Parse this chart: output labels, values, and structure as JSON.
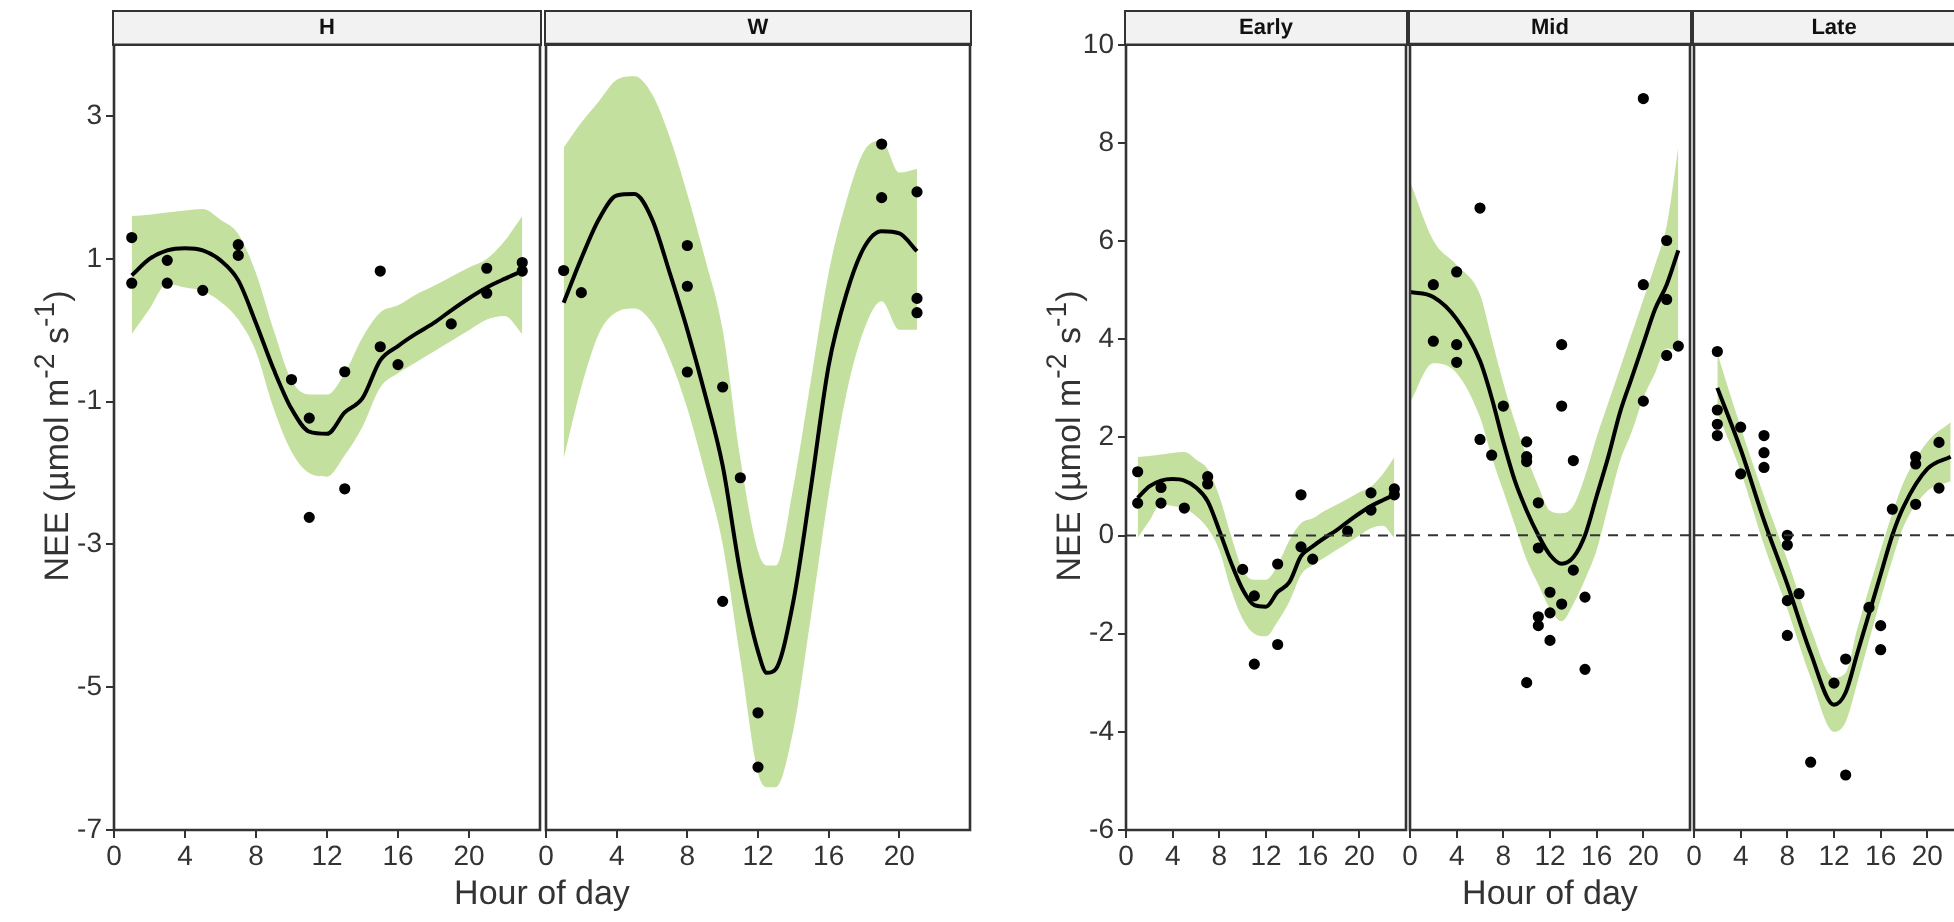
{
  "chart_data": [
    {
      "type": "scatter",
      "title": "H",
      "xlabel": "Hour of day",
      "ylabel": "NEE (µmol m$^{-2}$ s$^{-1}$)",
      "xlim": [
        0,
        24
      ],
      "xticks": [
        0,
        4,
        8,
        12,
        16,
        20
      ],
      "ylim": [
        -7,
        4
      ],
      "yticks": [
        -7,
        -5,
        -3,
        -1,
        1,
        3
      ],
      "marker": "circle",
      "series": [
        {
          "type": "line",
          "marker": "none",
          "color": "#000000",
          "x": [
            1,
            2,
            3,
            4,
            5,
            6,
            7,
            8,
            9,
            10,
            11,
            12,
            13,
            14,
            15,
            16,
            17,
            18,
            19,
            20,
            21,
            22,
            23
          ],
          "values": [
            0.77,
            1.0,
            1.12,
            1.15,
            1.12,
            0.98,
            0.7,
            0.1,
            -0.55,
            -1.1,
            -1.42,
            -1.45,
            -1.15,
            -0.95,
            -0.42,
            -0.22,
            -0.05,
            0.1,
            0.28,
            0.45,
            0.6,
            0.72,
            0.83
          ],
          "lower": [
            -0.05,
            0.3,
            0.65,
            0.6,
            0.55,
            0.4,
            0.15,
            -0.3,
            -1.1,
            -1.7,
            -2.0,
            -2.05,
            -1.75,
            -1.35,
            -0.8,
            -0.6,
            -0.45,
            -0.3,
            -0.15,
            0.0,
            0.15,
            0.2,
            -0.05
          ],
          "upper": [
            1.6,
            1.62,
            1.65,
            1.68,
            1.7,
            1.55,
            1.35,
            0.8,
            0.0,
            -0.7,
            -0.9,
            -0.9,
            -0.6,
            -0.1,
            0.25,
            0.35,
            0.5,
            0.62,
            0.75,
            0.88,
            1.0,
            1.25,
            1.6
          ]
        },
        {
          "color": "#000000",
          "x": [
            1,
            1,
            3,
            3,
            5,
            7,
            7,
            10,
            11,
            11,
            13,
            13,
            15,
            15,
            16,
            19,
            21,
            21,
            23,
            23
          ],
          "values": [
            1.3,
            0.66,
            0.98,
            0.66,
            0.56,
            1.2,
            1.05,
            -0.69,
            -1.23,
            -2.62,
            -0.58,
            -2.22,
            0.83,
            -0.23,
            -0.48,
            0.09,
            0.87,
            0.52,
            0.95,
            0.83
          ]
        }
      ]
    },
    {
      "type": "scatter",
      "title": "W",
      "xlim": [
        0,
        24
      ],
      "xticks": [
        0,
        4,
        8,
        12,
        16,
        20
      ],
      "ylim": [
        -7,
        4
      ],
      "yticks": [
        -7,
        -5,
        -3,
        -1,
        1,
        3
      ],
      "tick_labels": "x",
      "marker": "circle",
      "series": [
        {
          "type": "line",
          "marker": "none",
          "color": "#000000",
          "x": [
            1,
            2,
            3,
            4,
            5,
            6,
            7,
            8,
            9,
            10,
            11,
            12,
            12.5,
            13,
            14,
            15,
            16,
            17,
            18,
            19,
            20,
            21
          ],
          "values": [
            0.38,
            1.0,
            1.55,
            1.88,
            1.9,
            1.55,
            0.8,
            0.0,
            -0.9,
            -1.9,
            -3.4,
            -4.5,
            -4.8,
            -4.75,
            -3.8,
            -2.2,
            -0.5,
            0.5,
            1.15,
            1.38,
            1.35,
            1.1
          ],
          "lower": [
            -1.8,
            -0.8,
            -0.05,
            0.25,
            0.3,
            0.1,
            -0.4,
            -1.1,
            -2.0,
            -3.0,
            -4.6,
            -6.2,
            -6.4,
            -6.4,
            -5.6,
            -4.0,
            -2.3,
            -0.9,
            0.0,
            0.4,
            0.0,
            0.0
          ],
          "upper": [
            2.55,
            2.9,
            3.2,
            3.5,
            3.55,
            3.3,
            2.7,
            1.9,
            1.0,
            0.0,
            -1.8,
            -3.1,
            -3.3,
            -3.3,
            -2.2,
            -0.7,
            0.8,
            1.8,
            2.5,
            2.65,
            2.2,
            2.25
          ]
        },
        {
          "color": "#000000",
          "x": [
            1,
            2,
            8,
            8,
            8,
            10,
            11,
            10,
            12,
            12,
            19,
            19,
            21,
            21,
            21
          ],
          "values": [
            0.83,
            0.52,
            1.18,
            0.61,
            -0.59,
            -0.8,
            -2.07,
            -3.8,
            -5.36,
            -6.12,
            2.6,
            1.85,
            1.93,
            0.44,
            0.24
          ]
        }
      ]
    },
    {
      "type": "scatter",
      "title": "Early",
      "ylabel": "NEE (µmol m$^{-2}$ s$^{-1}$)",
      "xlim": [
        0,
        24
      ],
      "xticks": [
        0,
        4,
        8,
        12,
        16,
        20
      ],
      "ylim": [
        -6,
        10
      ],
      "yticks": [
        -6,
        -4,
        -2,
        0,
        2,
        4,
        6,
        8,
        10
      ],
      "marker": "circle",
      "ref_lines": [
        {
          "axis": "y",
          "value": 0,
          "line_style": "dashed"
        }
      ],
      "series": [
        {
          "type": "line",
          "marker": "none",
          "color": "#000000",
          "x": [
            1,
            2,
            3,
            4,
            5,
            6,
            7,
            8,
            9,
            10,
            11,
            12,
            13,
            14,
            15,
            16,
            17,
            18,
            19,
            20,
            21,
            22,
            23
          ],
          "values": [
            0.77,
            1.0,
            1.12,
            1.15,
            1.12,
            0.98,
            0.7,
            0.1,
            -0.55,
            -1.1,
            -1.42,
            -1.45,
            -1.15,
            -0.95,
            -0.42,
            -0.22,
            -0.05,
            0.1,
            0.28,
            0.45,
            0.6,
            0.72,
            0.83
          ],
          "lower": [
            -0.05,
            0.3,
            0.65,
            0.6,
            0.55,
            0.4,
            0.15,
            -0.3,
            -1.1,
            -1.7,
            -2.0,
            -2.05,
            -1.75,
            -1.35,
            -0.8,
            -0.6,
            -0.45,
            -0.3,
            -0.15,
            0.0,
            0.15,
            0.2,
            -0.05
          ],
          "upper": [
            1.6,
            1.62,
            1.65,
            1.68,
            1.7,
            1.55,
            1.35,
            0.8,
            0.0,
            -0.7,
            -0.9,
            -0.9,
            -0.6,
            -0.1,
            0.25,
            0.35,
            0.5,
            0.62,
            0.75,
            0.88,
            1.0,
            1.25,
            1.6
          ]
        },
        {
          "color": "#000000",
          "x": [
            1,
            1,
            3,
            3,
            5,
            7,
            7,
            10,
            11,
            11,
            13,
            13,
            15,
            15,
            16,
            19,
            21,
            21,
            23,
            23
          ],
          "values": [
            1.3,
            0.66,
            0.98,
            0.66,
            0.56,
            1.2,
            1.05,
            -0.69,
            -1.23,
            -2.62,
            -0.58,
            -2.22,
            0.83,
            -0.23,
            -0.48,
            0.09,
            0.87,
            0.52,
            0.95,
            0.83
          ]
        }
      ]
    },
    {
      "type": "scatter",
      "title": "Mid",
      "xlabel": "Hour of day",
      "xlim": [
        0,
        24
      ],
      "xticks": [
        0,
        4,
        8,
        12,
        16,
        20
      ],
      "ylim": [
        -6,
        10
      ],
      "yticks": [
        -6,
        -4,
        -2,
        0,
        2,
        4,
        6,
        8,
        10
      ],
      "tick_labels": "x",
      "marker": "circle",
      "ref_lines": [
        {
          "axis": "y",
          "value": 0,
          "line_style": "dashed"
        }
      ],
      "series": [
        {
          "type": "line",
          "marker": "none",
          "color": "#000000",
          "x": [
            0,
            2,
            4,
            6,
            7,
            8,
            9,
            10,
            11,
            12,
            13,
            14,
            15,
            16,
            17,
            18,
            19,
            20,
            21,
            22,
            23
          ],
          "values": [
            4.95,
            4.85,
            4.4,
            3.55,
            2.8,
            1.9,
            1.1,
            0.5,
            0.0,
            -0.4,
            -0.58,
            -0.45,
            0.0,
            0.8,
            1.6,
            2.5,
            3.2,
            3.9,
            4.6,
            5.1,
            5.8
          ],
          "lower": [
            2.7,
            3.5,
            3.3,
            2.4,
            1.6,
            0.9,
            0.2,
            -0.5,
            -1.0,
            -1.5,
            -1.75,
            -1.4,
            -0.9,
            -0.3,
            0.6,
            1.5,
            2.1,
            2.8,
            3.3,
            3.8,
            3.75
          ],
          "upper": [
            7.2,
            6.0,
            5.5,
            4.9,
            4.0,
            3.1,
            2.3,
            1.6,
            1.0,
            0.5,
            0.45,
            0.6,
            1.2,
            2.0,
            2.7,
            3.4,
            4.1,
            4.8,
            5.5,
            6.3,
            7.9
          ]
        },
        {
          "color": "#000000",
          "x": [
            2,
            2,
            4,
            4,
            4,
            6,
            6,
            7,
            8,
            10,
            10,
            10,
            10,
            11,
            11,
            11,
            11,
            12,
            12,
            12,
            13,
            13,
            13,
            14,
            14,
            15,
            15,
            20,
            20,
            20,
            22,
            22,
            22,
            23
          ],
          "values": [
            5.1,
            3.95,
            5.36,
            3.88,
            3.52,
            6.66,
            1.95,
            1.63,
            2.63,
            1.9,
            1.6,
            1.5,
            -3.0,
            0.66,
            -0.26,
            -1.66,
            -1.84,
            -1.58,
            -2.14,
            -1.16,
            3.88,
            2.63,
            -1.4,
            1.52,
            -0.71,
            -1.26,
            -2.73,
            8.89,
            5.1,
            2.73,
            6.0,
            4.8,
            3.66,
            3.85
          ]
        }
      ]
    },
    {
      "type": "scatter",
      "title": "Late",
      "xlim": [
        0,
        24
      ],
      "xticks": [
        0,
        4,
        8,
        12,
        16,
        20
      ],
      "ylim": [
        -6,
        10
      ],
      "yticks": [
        -6,
        -4,
        -2,
        0,
        2,
        4,
        6,
        8,
        10
      ],
      "tick_labels": "x",
      "marker": "circle",
      "ref_lines": [
        {
          "axis": "y",
          "value": 0,
          "line_style": "dashed"
        }
      ],
      "series": [
        {
          "type": "line",
          "marker": "none",
          "color": "#000000",
          "x": [
            2,
            4,
            6,
            8,
            10,
            12,
            13,
            14,
            16,
            17,
            18,
            20,
            22
          ],
          "values": [
            3.0,
            1.75,
            0.3,
            -1.0,
            -2.4,
            -3.45,
            -3.2,
            -2.4,
            -0.8,
            0.0,
            0.6,
            1.35,
            1.6
          ],
          "lower": [
            2.5,
            1.3,
            -0.2,
            -1.5,
            -2.9,
            -4.0,
            -3.8,
            -3.0,
            -1.3,
            -0.5,
            0.2,
            0.9,
            1.1
          ],
          "upper": [
            3.7,
            2.2,
            0.8,
            -0.5,
            -1.9,
            -2.9,
            -2.8,
            -1.9,
            -0.3,
            0.45,
            1.1,
            1.9,
            2.3
          ]
        },
        {
          "color": "#000000",
          "x": [
            2,
            2,
            2,
            2,
            4,
            4,
            6,
            6,
            6,
            8,
            8,
            8,
            8,
            9,
            10,
            12,
            13,
            13,
            15,
            16,
            16,
            17,
            19,
            19,
            19,
            21,
            21
          ],
          "values": [
            3.74,
            2.55,
            2.26,
            2.03,
            2.2,
            1.25,
            2.03,
            1.68,
            1.38,
            0.0,
            -0.2,
            -1.33,
            -2.04,
            -1.19,
            -4.62,
            -3.01,
            -2.52,
            -4.88,
            -1.47,
            -1.84,
            -2.33,
            0.53,
            1.6,
            1.45,
            0.63,
            1.89,
            0.96
          ]
        }
      ]
    }
  ]
}
